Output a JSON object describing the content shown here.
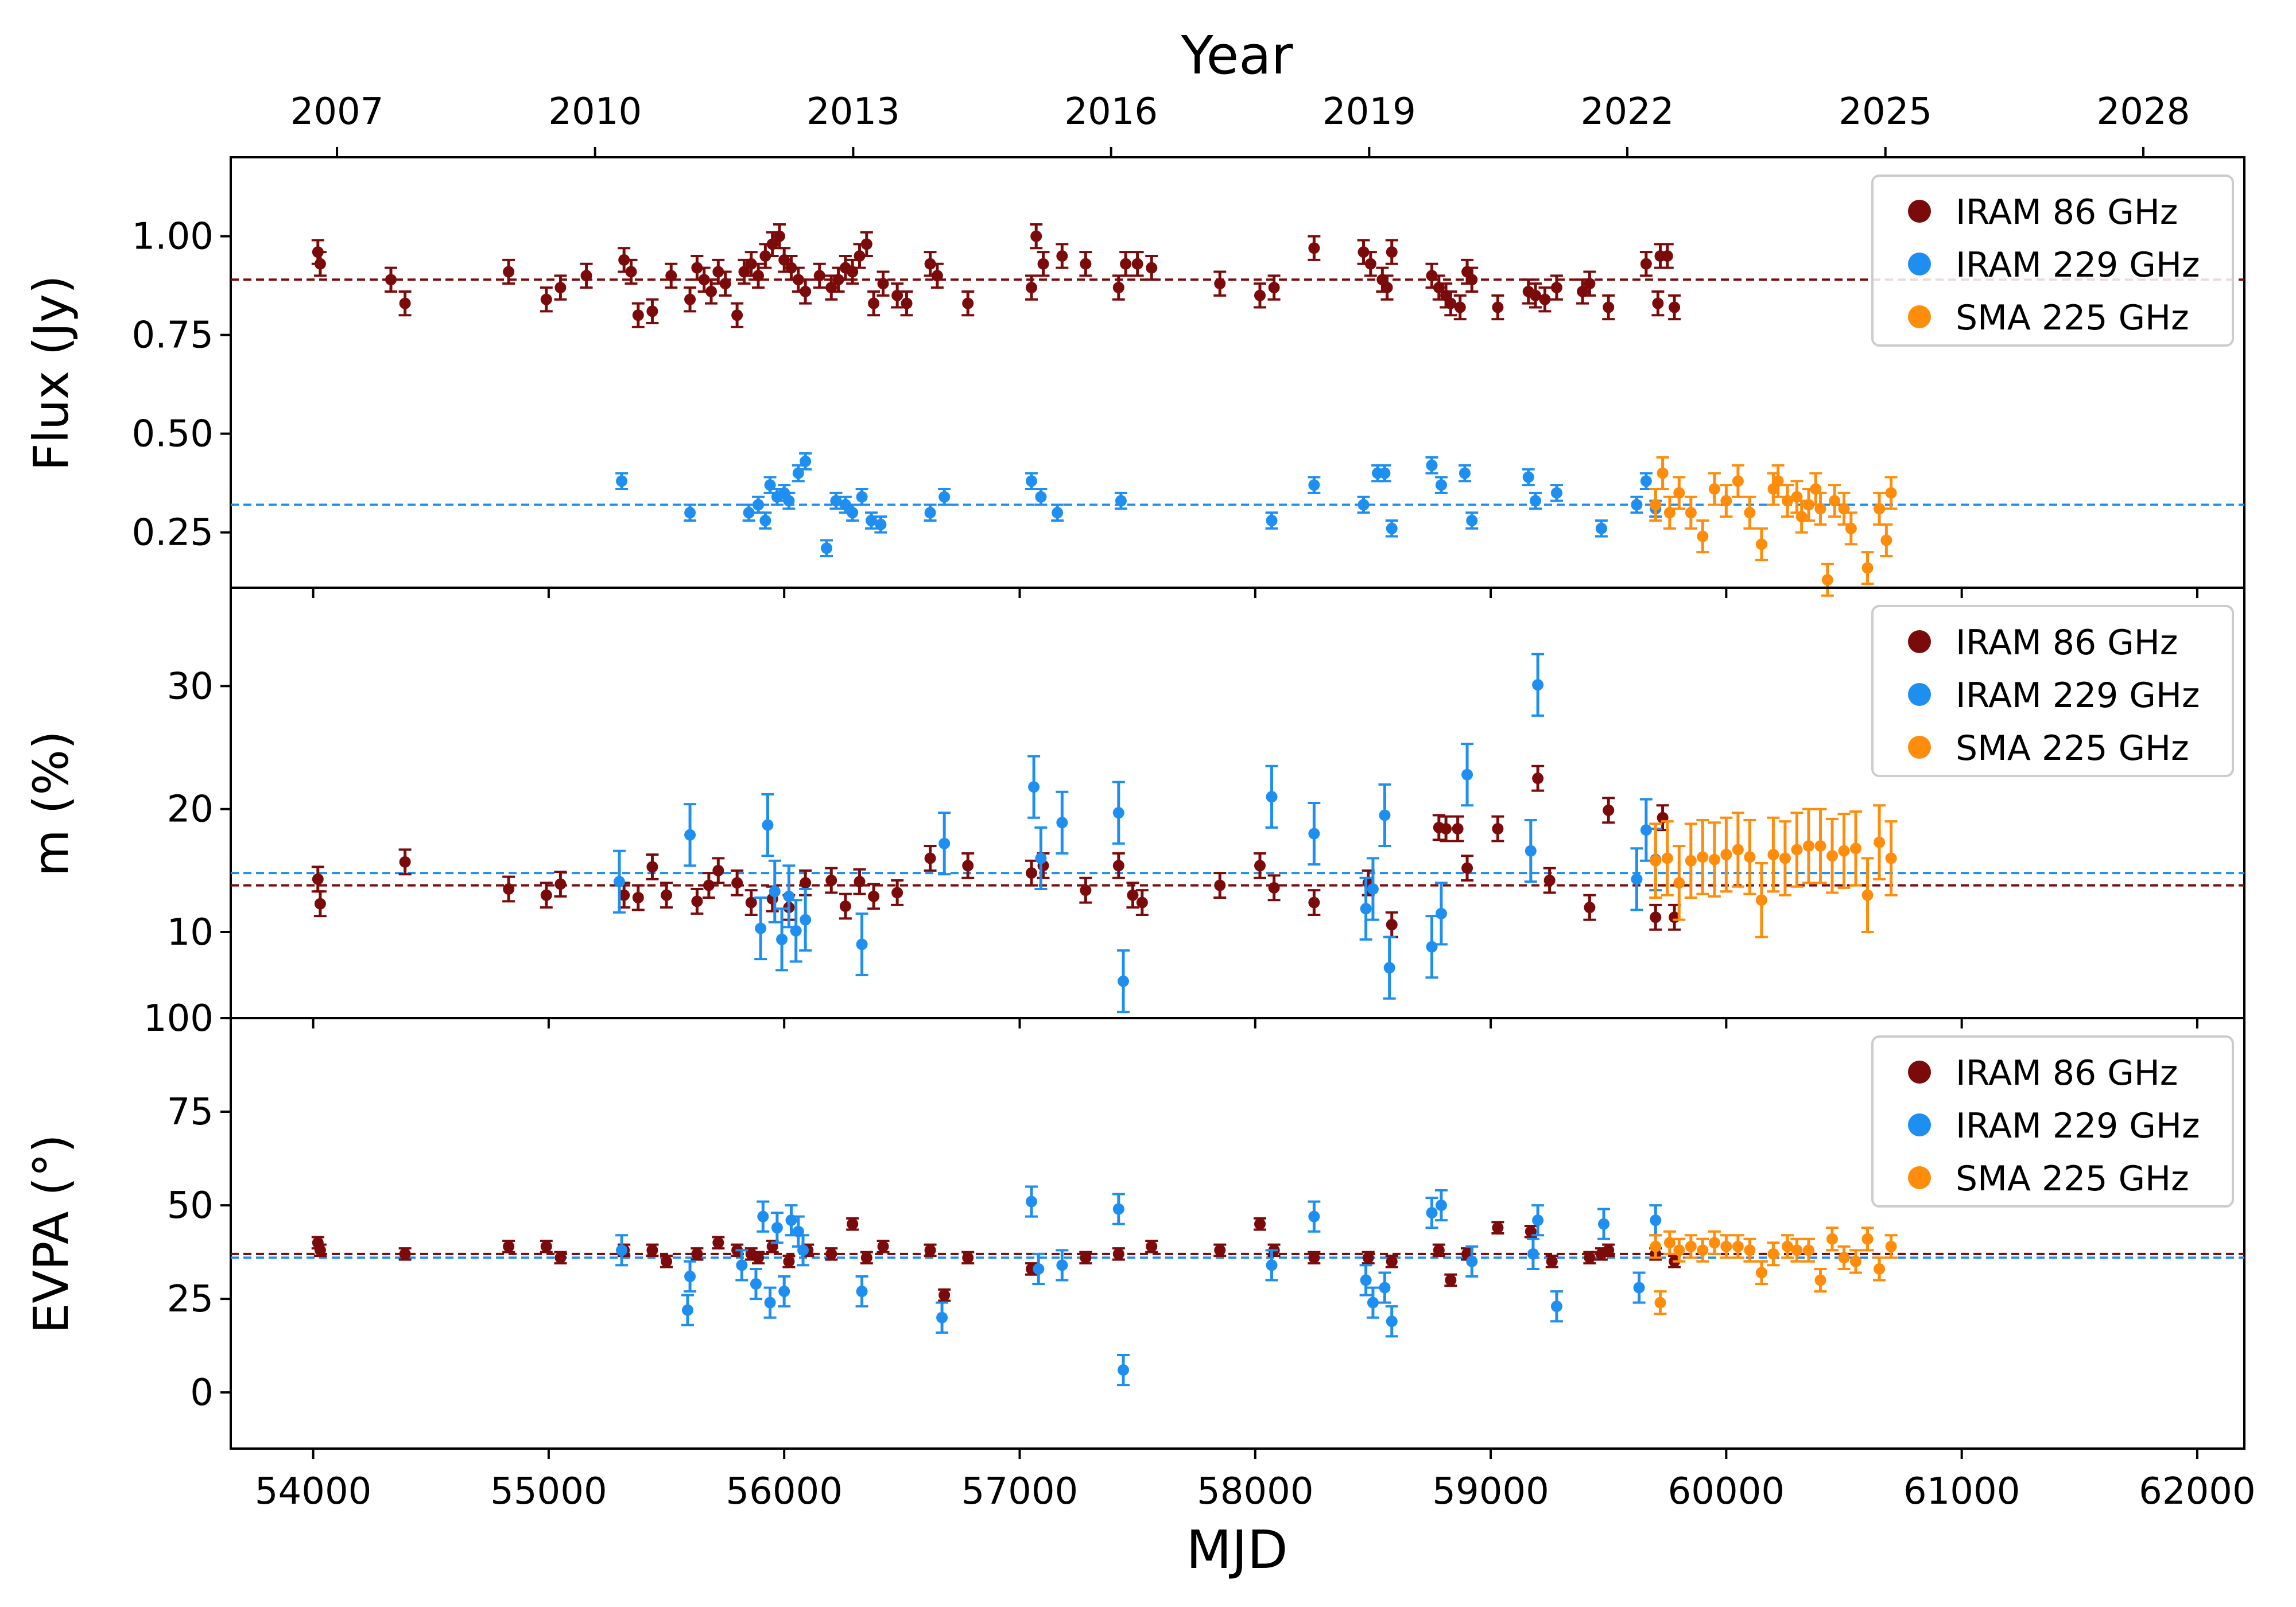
{
  "figure": {
    "top_axis_label": "Year",
    "bottom_axis_label": "MJD"
  },
  "colors": {
    "iram86": "#7b0b0b",
    "iram229": "#1e8ff0",
    "sma225": "#ff8c0a",
    "axis": "#000000"
  },
  "chart_data": [
    {
      "type": "scatter",
      "panel": "flux",
      "ylabel": "Flux (Jy)",
      "xlim": [
        53650,
        62200
      ],
      "ylim": [
        0.11,
        1.2
      ],
      "yticks": [
        0.25,
        0.5,
        0.75,
        1.0
      ],
      "ytick_labels": [
        "0.25",
        "0.50",
        "0.75",
        "1.00"
      ],
      "legend": {
        "position": "top-right",
        "entries": [
          "IRAM 86 GHz",
          "IRAM 229 GHz",
          "SMA 225 GHz"
        ]
      },
      "reference_lines": {
        "IRAM 86 GHz": 0.89,
        "IRAM 229 GHz": 0.32
      },
      "series": [
        {
          "name": "IRAM 86 GHz",
          "x": [
            54020,
            54030,
            54330,
            54390,
            54830,
            54990,
            55050,
            55160,
            55320,
            55350,
            55380,
            55440,
            55520,
            55600,
            55630,
            55660,
            55690,
            55720,
            55750,
            55800,
            55830,
            55860,
            55890,
            55920,
            55950,
            55980,
            56000,
            56030,
            56060,
            56090,
            56150,
            56200,
            56230,
            56260,
            56290,
            56320,
            56350,
            56380,
            56420,
            56480,
            56520,
            56620,
            56650,
            56780,
            57050,
            57070,
            57100,
            57180,
            57280,
            57420,
            57450,
            57500,
            57560,
            57850,
            58020,
            58080,
            58250,
            58460,
            58490,
            58540,
            58560,
            58580,
            58750,
            58780,
            58810,
            58830,
            58870,
            58900,
            58920,
            59030,
            59160,
            59190,
            59230,
            59280,
            59390,
            59420,
            59500,
            59660,
            59710,
            59720,
            59750,
            59780
          ],
          "y": [
            0.96,
            0.93,
            0.89,
            0.83,
            0.91,
            0.84,
            0.87,
            0.9,
            0.94,
            0.91,
            0.8,
            0.81,
            0.9,
            0.84,
            0.92,
            0.89,
            0.86,
            0.91,
            0.88,
            0.8,
            0.91,
            0.93,
            0.9,
            0.95,
            0.98,
            1.0,
            0.94,
            0.92,
            0.89,
            0.86,
            0.9,
            0.87,
            0.89,
            0.92,
            0.91,
            0.95,
            0.98,
            0.83,
            0.88,
            0.85,
            0.83,
            0.93,
            0.9,
            0.83,
            0.87,
            1.0,
            0.93,
            0.95,
            0.93,
            0.87,
            0.93,
            0.93,
            0.92,
            0.88,
            0.85,
            0.87,
            0.97,
            0.96,
            0.93,
            0.89,
            0.87,
            0.96,
            0.9,
            0.87,
            0.85,
            0.83,
            0.82,
            0.91,
            0.89,
            0.82,
            0.86,
            0.85,
            0.84,
            0.87,
            0.86,
            0.88,
            0.82,
            0.93,
            0.83,
            0.95,
            0.95,
            0.82
          ],
          "yerr": 0.03
        },
        {
          "name": "IRAM 229 GHz",
          "x": [
            55310,
            55600,
            55850,
            55890,
            55920,
            55940,
            55970,
            56000,
            56020,
            56060,
            56090,
            56180,
            56220,
            56260,
            56290,
            56330,
            56370,
            56410,
            56620,
            56680,
            57050,
            57090,
            57160,
            57430,
            58070,
            58250,
            58460,
            58520,
            58550,
            58580,
            58750,
            58790,
            58890,
            58920,
            59160,
            59190,
            59280,
            59470,
            59620,
            59660,
            59700
          ],
          "y": [
            0.38,
            0.3,
            0.3,
            0.32,
            0.28,
            0.37,
            0.34,
            0.35,
            0.33,
            0.4,
            0.43,
            0.21,
            0.33,
            0.32,
            0.3,
            0.34,
            0.28,
            0.27,
            0.3,
            0.34,
            0.38,
            0.34,
            0.3,
            0.33,
            0.28,
            0.37,
            0.32,
            0.4,
            0.4,
            0.26,
            0.42,
            0.37,
            0.4,
            0.28,
            0.39,
            0.33,
            0.35,
            0.26,
            0.32,
            0.38,
            0.31
          ],
          "yerr": 0.02
        },
        {
          "name": "SMA 225 GHz",
          "x": [
            59700,
            59730,
            59760,
            59800,
            59850,
            59900,
            59950,
            60000,
            60050,
            60100,
            60150,
            60200,
            60220,
            60260,
            60300,
            60320,
            60350,
            60380,
            60400,
            60430,
            60460,
            60500,
            60530,
            60600,
            60650,
            60680,
            60700
          ],
          "y": [
            0.32,
            0.4,
            0.3,
            0.35,
            0.3,
            0.24,
            0.36,
            0.33,
            0.38,
            0.3,
            0.22,
            0.36,
            0.38,
            0.33,
            0.34,
            0.29,
            0.32,
            0.36,
            0.31,
            0.13,
            0.33,
            0.31,
            0.26,
            0.16,
            0.31,
            0.23,
            0.35
          ],
          "yerr": 0.04
        }
      ]
    },
    {
      "type": "scatter",
      "panel": "polarization",
      "ylabel": "m (%)",
      "xlim": [
        53650,
        62200
      ],
      "ylim": [
        3,
        38
      ],
      "yticks": [
        10,
        20,
        30
      ],
      "ytick_labels": [
        "10",
        "20",
        "30"
      ],
      "legend": {
        "position": "top-right",
        "entries": [
          "IRAM 86 GHz",
          "IRAM 229 GHz",
          "SMA 225 GHz"
        ]
      },
      "reference_lines": {
        "IRAM 86 GHz": 13.8,
        "IRAM 229 GHz": 14.8
      },
      "series": [
        {
          "name": "IRAM 86 GHz",
          "x": [
            54020,
            54030,
            54390,
            54830,
            54990,
            55050,
            55320,
            55380,
            55440,
            55500,
            55630,
            55680,
            55720,
            55800,
            55860,
            55950,
            56020,
            56090,
            56200,
            56260,
            56320,
            56380,
            56480,
            56620,
            56780,
            57050,
            57100,
            57280,
            57420,
            57480,
            57520,
            57850,
            58020,
            58080,
            58250,
            58480,
            58580,
            58780,
            58810,
            58860,
            58900,
            59030,
            59200,
            59250,
            59420,
            59500,
            59700,
            59730,
            59780
          ],
          "y": [
            14.3,
            12.3,
            15.7,
            13.5,
            13.0,
            13.9,
            13.0,
            12.8,
            15.3,
            13.0,
            12.5,
            13.8,
            15.0,
            14.0,
            12.4,
            12.7,
            12.0,
            14.0,
            14.2,
            12.1,
            14.1,
            12.9,
            13.2,
            16.0,
            15.4,
            14.8,
            15.4,
            13.4,
            15.4,
            13.0,
            12.4,
            13.8,
            15.4,
            13.6,
            12.4,
            14.0,
            10.6,
            18.5,
            18.4,
            18.4,
            15.2,
            18.4,
            22.5,
            14.2,
            12.0,
            19.9,
            11.2,
            19.3,
            11.2
          ],
          "yerr": 1.0
        },
        {
          "name": "IRAM 229 GHz",
          "x": [
            55300,
            55600,
            55900,
            55930,
            55960,
            55990,
            56020,
            56050,
            56090,
            56330,
            56680,
            57060,
            57090,
            57180,
            57420,
            57440,
            58070,
            58250,
            58470,
            58500,
            58550,
            58570,
            58750,
            58790,
            58900,
            59170,
            59200,
            59620,
            59660,
            59700
          ],
          "y": [
            14.1,
            17.9,
            10.3,
            18.7,
            13.3,
            9.4,
            12.9,
            10.1,
            11.0,
            9.0,
            17.2,
            21.8,
            16.0,
            18.9,
            19.7,
            6.0,
            21.0,
            18.0,
            11.9,
            13.5,
            19.5,
            7.1,
            8.8,
            11.5,
            22.8,
            16.6,
            30.1,
            14.3,
            18.3,
            15.9
          ],
          "yerr": 2.5
        },
        {
          "name": "SMA 225 GHz",
          "x": [
            59700,
            59750,
            59800,
            59850,
            59900,
            59950,
            60000,
            60050,
            60100,
            60150,
            60200,
            60250,
            60300,
            60350,
            60400,
            60450,
            60500,
            60550,
            60600,
            60650,
            60700
          ],
          "y": [
            15.8,
            16.0,
            14.0,
            15.8,
            16.1,
            15.9,
            16.3,
            16.7,
            16.1,
            12.6,
            16.3,
            16.0,
            16.7,
            17.0,
            17.0,
            16.2,
            16.6,
            16.8,
            13.0,
            17.3,
            16.0
          ],
          "yerr": 3.0
        }
      ]
    },
    {
      "type": "scatter",
      "panel": "evpa",
      "ylabel": "EVPA (°)",
      "xlim": [
        53650,
        62200
      ],
      "ylim": [
        -15,
        100
      ],
      "yticks": [
        0,
        25,
        50,
        75,
        100
      ],
      "ytick_labels": [
        "0",
        "25",
        "50",
        "75",
        "100"
      ],
      "legend": {
        "position": "top-right",
        "entries": [
          "IRAM 86 GHz",
          "IRAM 229 GHz",
          "SMA 225 GHz"
        ]
      },
      "reference_lines": {
        "IRAM 86 GHz": 37,
        "IRAM 229 GHz": 36
      },
      "series": [
        {
          "name": "IRAM 86 GHz",
          "x": [
            54020,
            54030,
            54390,
            54830,
            54990,
            55050,
            55320,
            55440,
            55500,
            55630,
            55720,
            55800,
            55860,
            55890,
            55950,
            56020,
            56100,
            56200,
            56290,
            56350,
            56420,
            56620,
            56680,
            56780,
            57050,
            57280,
            57420,
            57560,
            57850,
            58020,
            58080,
            58250,
            58480,
            58580,
            58780,
            58830,
            58900,
            59030,
            59170,
            59260,
            59420,
            59470,
            59500,
            59700,
            59780
          ],
          "y": [
            40,
            38,
            37,
            39,
            39,
            36,
            38,
            38,
            35,
            37,
            40,
            38,
            37,
            36,
            39,
            35,
            38,
            37,
            45,
            36,
            39,
            38,
            26,
            36,
            33,
            36,
            37,
            39,
            38,
            45,
            38,
            36,
            36,
            35,
            38,
            30,
            37,
            44,
            43,
            35,
            36,
            37,
            38,
            37,
            35
          ],
          "yerr": 1.5
        },
        {
          "name": "IRAM 229 GHz",
          "x": [
            55310,
            55590,
            55600,
            55820,
            55880,
            55910,
            55940,
            55970,
            56000,
            56030,
            56060,
            56080,
            56330,
            56670,
            57050,
            57080,
            57180,
            57420,
            57440,
            58070,
            58250,
            58470,
            58500,
            58550,
            58580,
            58750,
            58790,
            58920,
            59180,
            59200,
            59280,
            59480,
            59630,
            59700
          ],
          "y": [
            38,
            22,
            31,
            34,
            29,
            47,
            24,
            44,
            27,
            46,
            43,
            38,
            27,
            20,
            51,
            33,
            34,
            49,
            6,
            34,
            47,
            30,
            24,
            28,
            19,
            48,
            50,
            35,
            37,
            46,
            23,
            45,
            28,
            46
          ],
          "yerr": 4.0
        },
        {
          "name": "SMA 225 GHz",
          "x": [
            59700,
            59720,
            59760,
            59800,
            59850,
            59900,
            59950,
            60000,
            60050,
            60100,
            60150,
            60200,
            60260,
            60300,
            60350,
            60400,
            60450,
            60500,
            60550,
            60600,
            60650,
            60700
          ],
          "y": [
            39,
            24,
            40,
            38,
            39,
            38,
            40,
            39,
            39,
            38,
            32,
            37,
            39,
            38,
            38,
            30,
            41,
            36,
            35,
            41,
            33,
            39
          ],
          "yerr": 3.0
        }
      ]
    }
  ],
  "year_axis": {
    "label": "Year",
    "ticks": [
      {
        "label": "2007",
        "mjd": 54101
      },
      {
        "label": "2010",
        "mjd": 55197
      },
      {
        "label": "2013",
        "mjd": 56293
      },
      {
        "label": "2016",
        "mjd": 57388
      },
      {
        "label": "2019",
        "mjd": 58484
      },
      {
        "label": "2022",
        "mjd": 59580
      },
      {
        "label": "2025",
        "mjd": 60676
      },
      {
        "label": "2028",
        "mjd": 61771
      }
    ]
  },
  "mjd_axis": {
    "label": "MJD",
    "ticks": [
      54000,
      55000,
      56000,
      57000,
      58000,
      59000,
      60000,
      61000,
      62000
    ],
    "tick_labels": [
      "54000",
      "55000",
      "56000",
      "57000",
      "58000",
      "59000",
      "60000",
      "61000",
      "62000"
    ]
  }
}
